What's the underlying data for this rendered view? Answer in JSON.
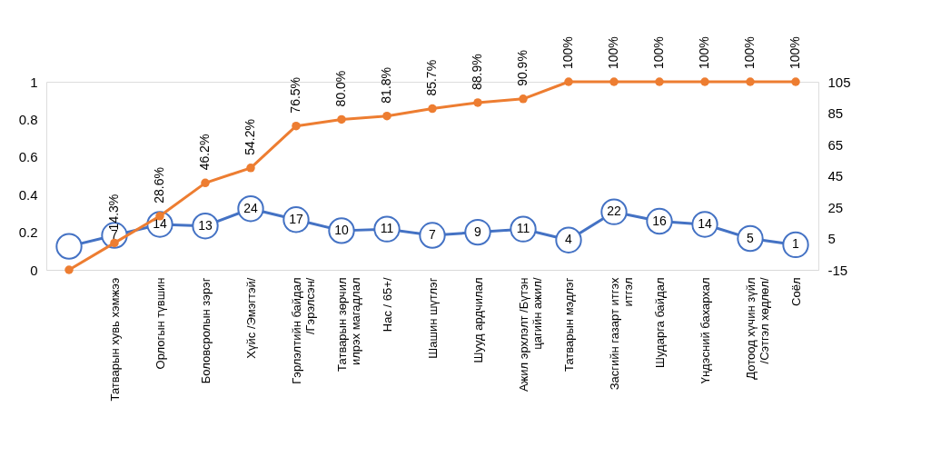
{
  "chart_data": {
    "type": "line",
    "categories": [
      null,
      "Татварын хувь хэмжээ",
      "Орлогын түвшин",
      "Боловсролын зэрэг",
      "Хүйс /Эмэгтэй/",
      "Гэрлэлтийн байдал /Гэрэлсэн/",
      "Татварын зөрчил илрэх магадлал",
      "Нас  / 65+/",
      "Шашин шүтлэг",
      "Шууд ардчилал",
      "Ажил эрхлэлт /Бүтэн цагийн ажил/",
      "Татварын мэдлэг",
      "Засгийн газарт итгэх итгэл",
      "Шударга байдал",
      "Үндэсний бахархал",
      "Дотоод хүчин зүйл /Сэтгэл хөдлөл/",
      "Соёл"
    ],
    "series": [
      {
        "color": "#ed7d31",
        "values": [
          0,
          0.143,
          0.286,
          0.462,
          0.542,
          0.765,
          0.8,
          0.818,
          0.857,
          0.889,
          0.909,
          1,
          1,
          1,
          1,
          1,
          1
        ],
        "value_labels": [
          null,
          "14.3%",
          "28.6%",
          "46.2%",
          "54.2%",
          "76.5%",
          "80.0%",
          "81.8%",
          "85.7%",
          "88.9%",
          "90.9%",
          "100%",
          "100%",
          "100%",
          "100%",
          "100%",
          "100%"
        ]
      },
      {
        "color": "#4472c4",
        "axis": "y2",
        "values": [
          0,
          7,
          14,
          13,
          24,
          17,
          10,
          11,
          7,
          9,
          11,
          4,
          22,
          16,
          14,
          5,
          1
        ],
        "value_labels": [
          null,
          "7",
          "14",
          "13",
          "24",
          "17",
          "10",
          "11",
          "7",
          "9",
          "11",
          "4",
          "22",
          "16",
          "14",
          "5",
          "1"
        ]
      }
    ],
    "ylim": [
      0,
      1
    ],
    "yticks": [
      0,
      0.2,
      0.4,
      0.6,
      0.8,
      1
    ],
    "y2lim": [
      -15,
      105
    ],
    "y2ticks": [
      -15,
      5,
      25,
      45,
      65,
      85,
      105
    ],
    "grid": false,
    "marker": "circle",
    "line_style": "solid"
  }
}
